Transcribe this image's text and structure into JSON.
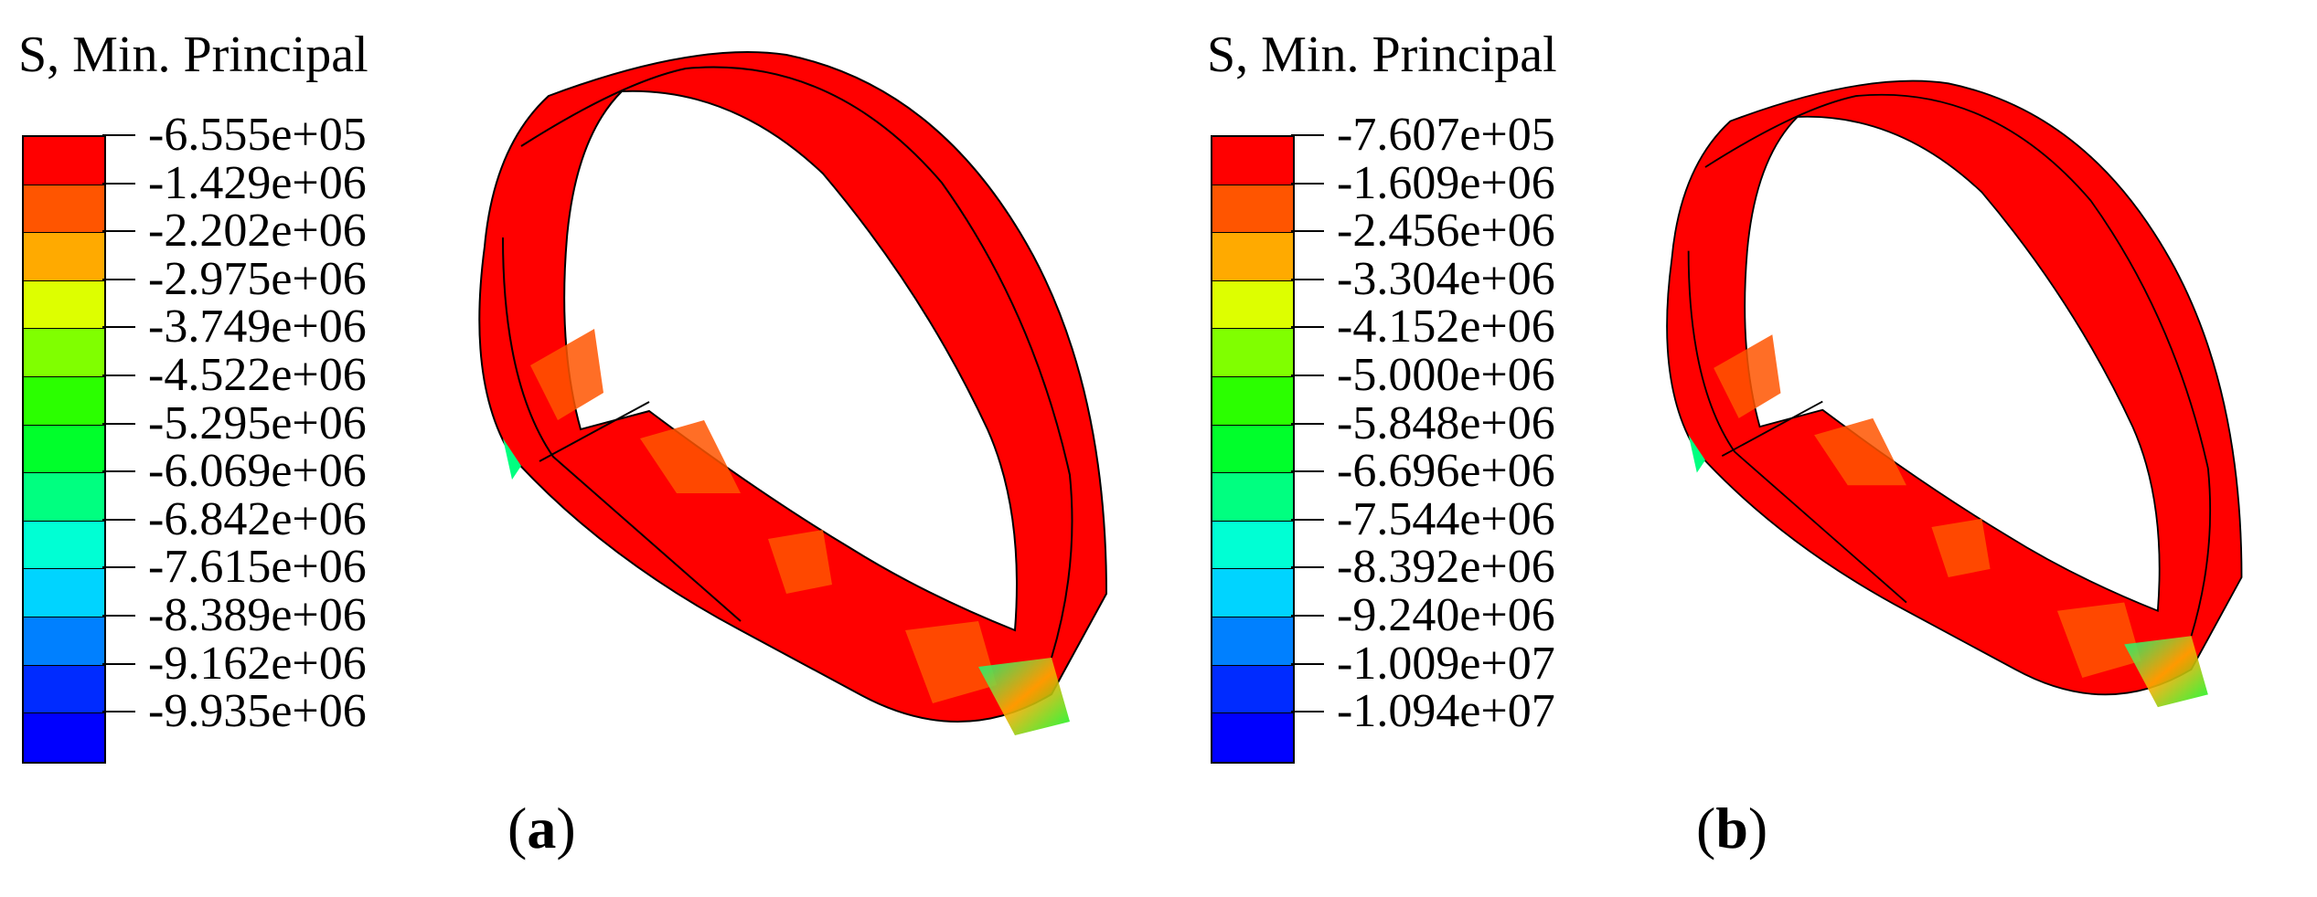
{
  "legend_colors": [
    "#ff0000",
    "#ff5500",
    "#ffaa00",
    "#ddff00",
    "#80ff00",
    "#2bff00",
    "#00ff2b",
    "#00ff80",
    "#00ffd4",
    "#00d4ff",
    "#0080ff",
    "#002bff",
    "#0000ff"
  ],
  "panels": [
    {
      "legend_title": "S, Min. Principal",
      "legend_values": [
        "-6.555e+05",
        "-1.429e+06",
        "-2.202e+06",
        "-2.975e+06",
        "-3.749e+06",
        "-4.522e+06",
        "-5.295e+06",
        "-6.069e+06",
        "-6.842e+06",
        "-7.615e+06",
        "-8.389e+06",
        "-9.162e+06",
        "-9.935e+06"
      ],
      "caption_letter": "a"
    },
    {
      "legend_title": "S, Min. Principal",
      "legend_values": [
        "-7.607e+05",
        "-1.609e+06",
        "-2.456e+06",
        "-3.304e+06",
        "-4.152e+06",
        "-5.000e+06",
        "-5.848e+06",
        "-6.696e+06",
        "-7.544e+06",
        "-8.392e+06",
        "-9.240e+06",
        "-1.009e+07",
        "-1.094e+07"
      ],
      "caption_letter": "b"
    }
  ]
}
